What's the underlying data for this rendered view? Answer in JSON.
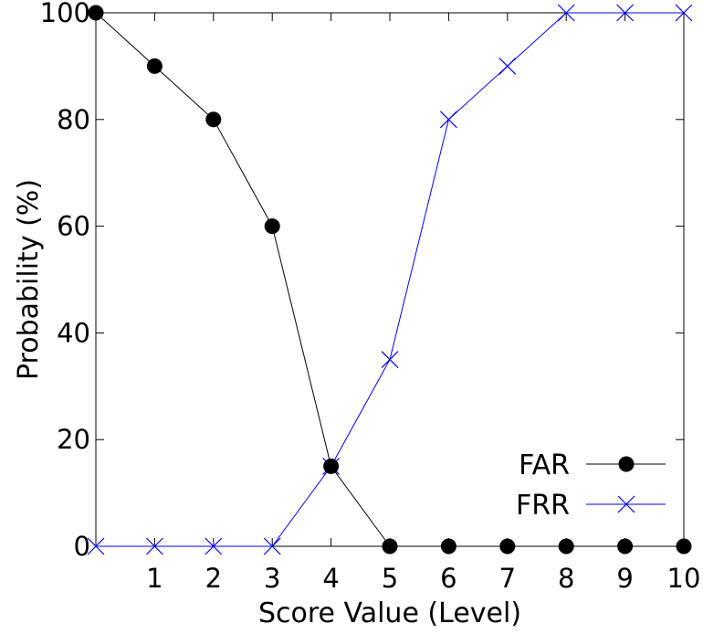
{
  "chart_data": {
    "type": "line",
    "title": "",
    "xlabel": "Score Value (Level)",
    "ylabel": "Probability (%)",
    "xlim": [
      0,
      10
    ],
    "ylim": [
      0,
      100
    ],
    "x_ticks": [
      "1",
      "2",
      "3",
      "4",
      "5",
      "6",
      "7",
      "8",
      "9",
      "10"
    ],
    "y_ticks": [
      "0",
      "20",
      "40",
      "60",
      "80",
      "100"
    ],
    "grid": false,
    "legend_position": "bottom-right",
    "x": [
      0,
      1,
      2,
      3,
      4,
      5,
      6,
      7,
      8,
      9,
      10
    ],
    "series": [
      {
        "name": "FAR",
        "marker": "filled-circle",
        "color": "#000000",
        "values": [
          100,
          90,
          80,
          60,
          15,
          0,
          0,
          0,
          0,
          0,
          0
        ]
      },
      {
        "name": "FRR",
        "marker": "cross",
        "color": "#0000ff",
        "values": [
          0,
          0,
          0,
          0,
          15,
          35,
          80,
          90,
          100,
          100,
          100
        ]
      }
    ]
  }
}
